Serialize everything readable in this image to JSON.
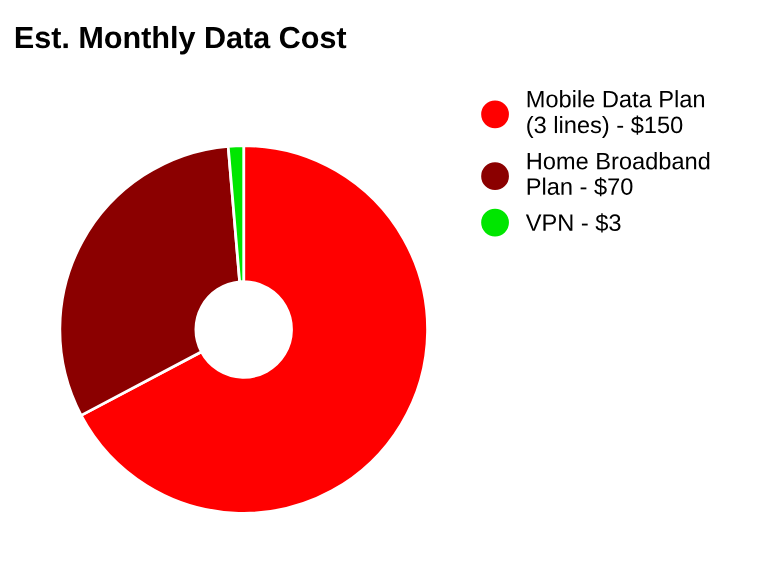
{
  "chart_data": {
    "type": "donut",
    "title": "Est. Monthly Data Cost",
    "categories": [
      "Mobile Data Plan\n(3 lines) -",
      "Home Broadband\nPlan -",
      "VPN -"
    ],
    "values": [
      150,
      70,
      3
    ],
    "value_labels": [
      "$150",
      "$70",
      "$3"
    ],
    "colors": [
      "#ff0000",
      "#8b0000",
      "#00e600"
    ],
    "legend": "right"
  }
}
